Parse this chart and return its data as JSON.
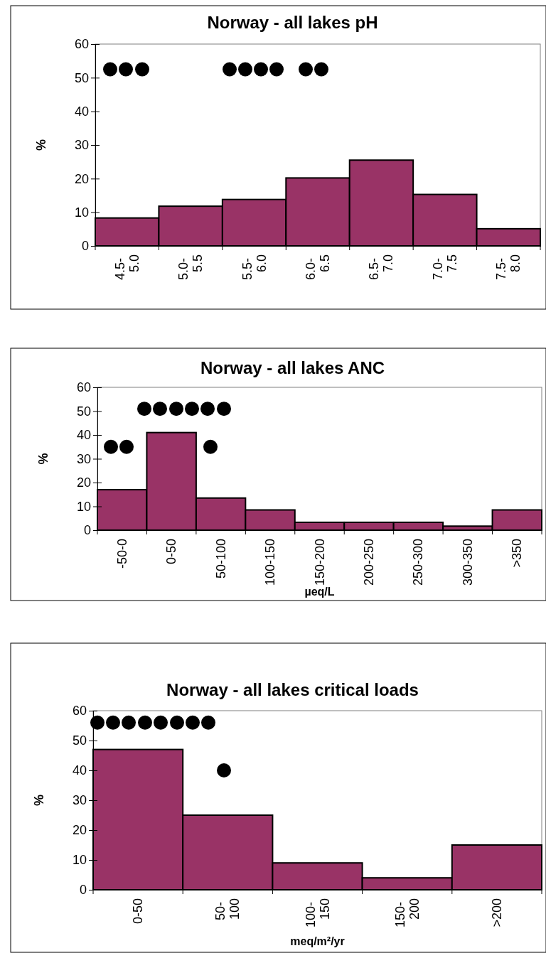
{
  "chart_data": [
    {
      "type": "bar",
      "title": "Norway - all lakes pH",
      "ylabel": "%",
      "categories": [
        "4.5- 5.0",
        "5.0- 5.5",
        "5.5- 6.0",
        "6.0- 6.5",
        "6.5- 7.0",
        "7.0- 7.5",
        "7.5- 8.0"
      ],
      "values": [
        8.3,
        11.8,
        13.8,
        20.2,
        25.5,
        15.3,
        5.1
      ],
      "color": "#993366",
      "ylim": [
        0,
        60
      ],
      "yticks": [
        0,
        10,
        20,
        30,
        40,
        50,
        60
      ],
      "grid": false
    },
    {
      "type": "bar",
      "title": "Norway - all lakes ANC",
      "ylabel": "%",
      "xlabel": "µeq/L",
      "categories": [
        "-50-0",
        "0-50",
        "50-100",
        "100-150",
        "150-200",
        "200-250",
        "250-300",
        "300-350",
        ">350"
      ],
      "values": [
        17,
        41,
        13.5,
        8.5,
        3.3,
        3.3,
        3.3,
        1.7,
        8.5
      ],
      "color": "#993366",
      "ylim": [
        0,
        60
      ],
      "yticks": [
        0,
        10,
        20,
        30,
        40,
        50,
        60
      ],
      "grid": false
    },
    {
      "type": "bar",
      "title": "Norway - all lakes critical loads",
      "ylabel": "%",
      "xlabel": "meq/m²/yr",
      "categories": [
        "0-50",
        "50- 100",
        "100- 150",
        "150- 200",
        ">200"
      ],
      "values": [
        47,
        25,
        9,
        4,
        15
      ],
      "color": "#993366",
      "ylim": [
        0,
        60
      ],
      "yticks": [
        0,
        10,
        20,
        30,
        40,
        50,
        60
      ],
      "grid": false
    }
  ]
}
